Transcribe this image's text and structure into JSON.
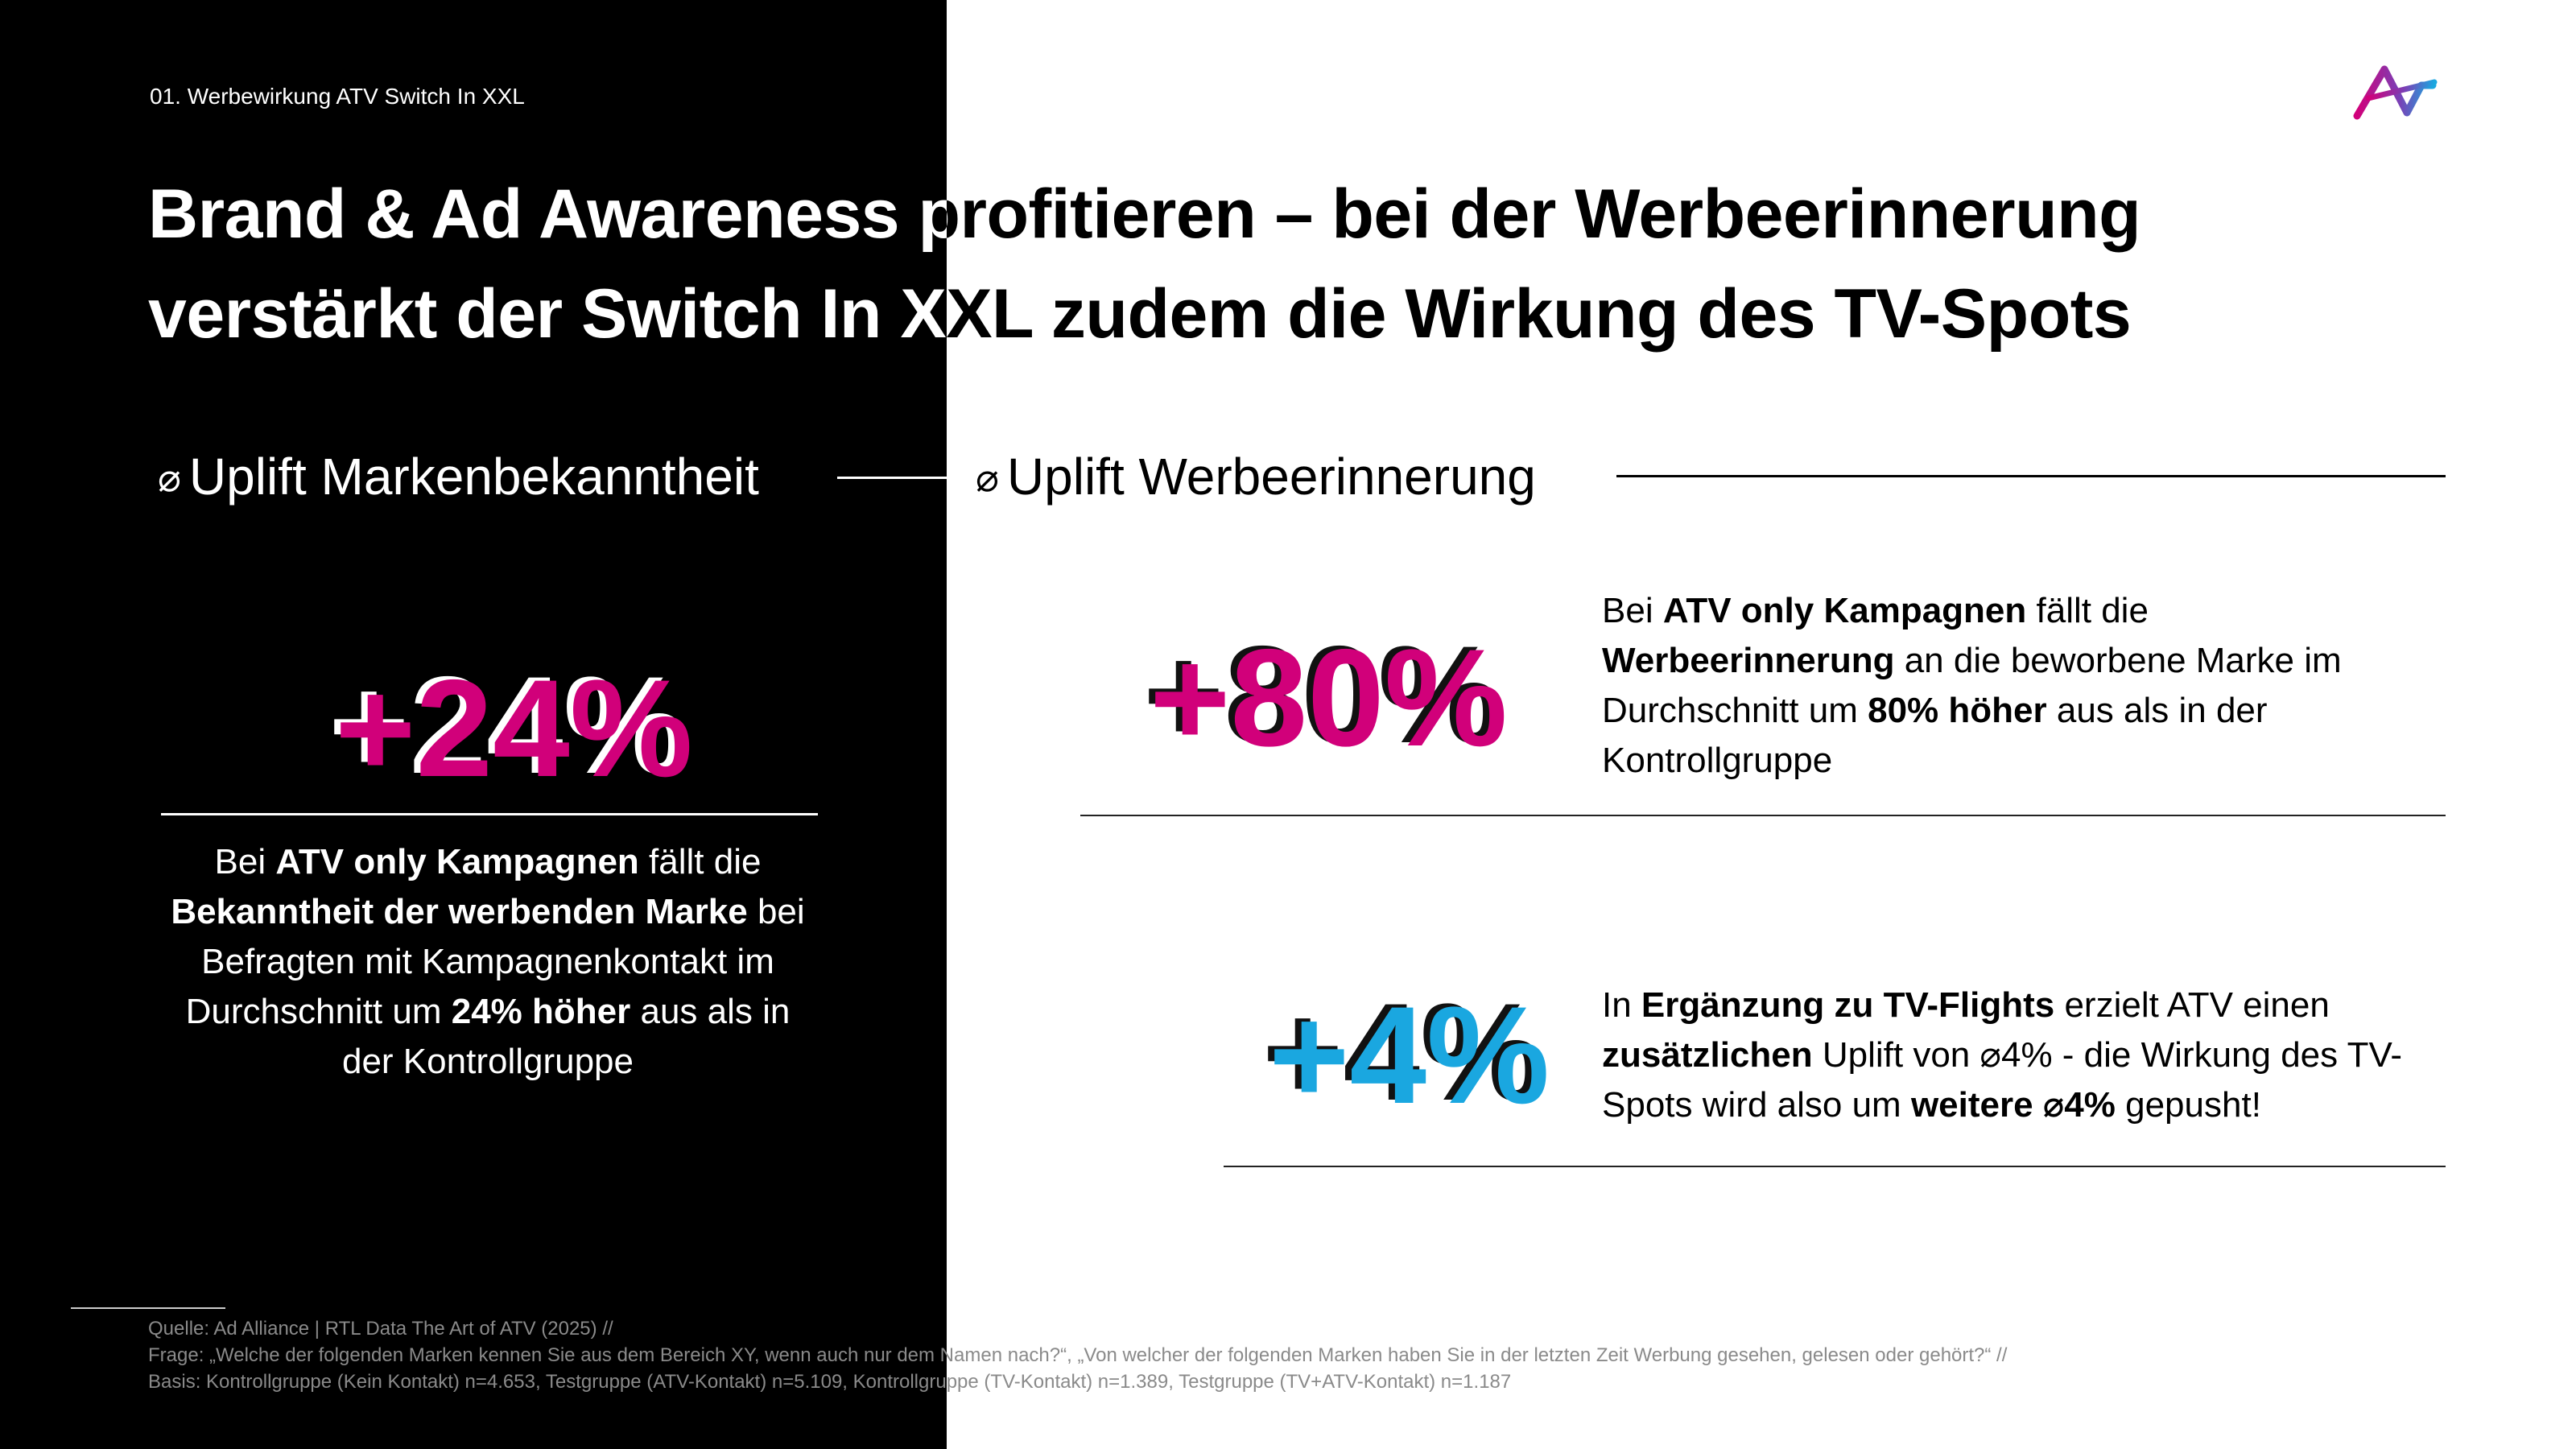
{
  "breadcrumb": "01. Werbewirkung ATV Switch In XXL",
  "brand": {
    "logo_icon": "ad-alliance-logo",
    "colors": {
      "pink": "#d1007a",
      "blue": "#1aa7e0",
      "dark": "#000000"
    }
  },
  "title": {
    "line1": "Brand & Ad Awareness profitieren – bei der Werbeerinnerung",
    "line2": "verstärkt der Switch In XXL zudem die Wirkung des TV-Spots"
  },
  "left_section": {
    "glyph": "⌀",
    "heading": "Uplift Markenbekanntheit",
    "big_number": "+24%",
    "desc": [
      {
        "t": "Bei ",
        "b": false
      },
      {
        "t": "ATV only Kampagnen",
        "b": true
      },
      {
        "t": " fällt die ",
        "b": false
      },
      {
        "t": "Bekanntheit der werbenden Marke",
        "b": true
      },
      {
        "t": " bei Befragten mit Kampagnenkontakt im Durchschnitt um ",
        "b": false
      },
      {
        "t": "24% höher",
        "b": true
      },
      {
        "t": " aus als in der Kontrollgruppe",
        "b": false
      }
    ]
  },
  "right_section": {
    "glyph": "⌀",
    "heading": "Uplift Werbeerinnerung",
    "items": [
      {
        "big_number": "+80%",
        "desc": [
          {
            "t": "Bei ",
            "b": false
          },
          {
            "t": "ATV only Kampagnen",
            "b": true
          },
          {
            "t": " fällt die ",
            "b": false
          },
          {
            "t": "Werbeerinnerung",
            "b": true
          },
          {
            "t": " an die beworbene Marke im Durchschnitt um ",
            "b": false
          },
          {
            "t": "80% höher",
            "b": true
          },
          {
            "t": " aus als in der Kontrollgruppe",
            "b": false
          }
        ]
      },
      {
        "big_number": "+4%",
        "desc": [
          {
            "t": "In ",
            "b": false
          },
          {
            "t": "Ergänzung zu TV-Flights",
            "b": true
          },
          {
            "t": " erzielt ATV einen ",
            "b": false
          },
          {
            "t": "zusätzlichen",
            "b": true
          },
          {
            "t": " Uplift von ⌀4% - die Wirkung des TV-Spots wird also um ",
            "b": false
          },
          {
            "t": "weitere ⌀4%",
            "b": true
          },
          {
            "t": " gepusht!",
            "b": false
          }
        ]
      }
    ]
  },
  "footer": {
    "source": "Quelle: Ad Alliance | RTL Data The Art of ATV (2025) //",
    "question": "Frage: „Welche der folgenden Marken kennen Sie aus dem Bereich XY, wenn auch nur dem Namen nach?“, „Von welcher der folgenden Marken haben Sie in der letzten Zeit Werbung gesehen, gelesen oder gehört?“ //",
    "basis": "Basis: Kontrollgruppe (Kein Kontakt) n=4.653, Testgruppe (ATV-Kontakt) n=5.109, Kontrollgruppe (TV-Kontakt) n=1.389, Testgruppe (TV+ATV-Kontakt) n=1.187"
  }
}
